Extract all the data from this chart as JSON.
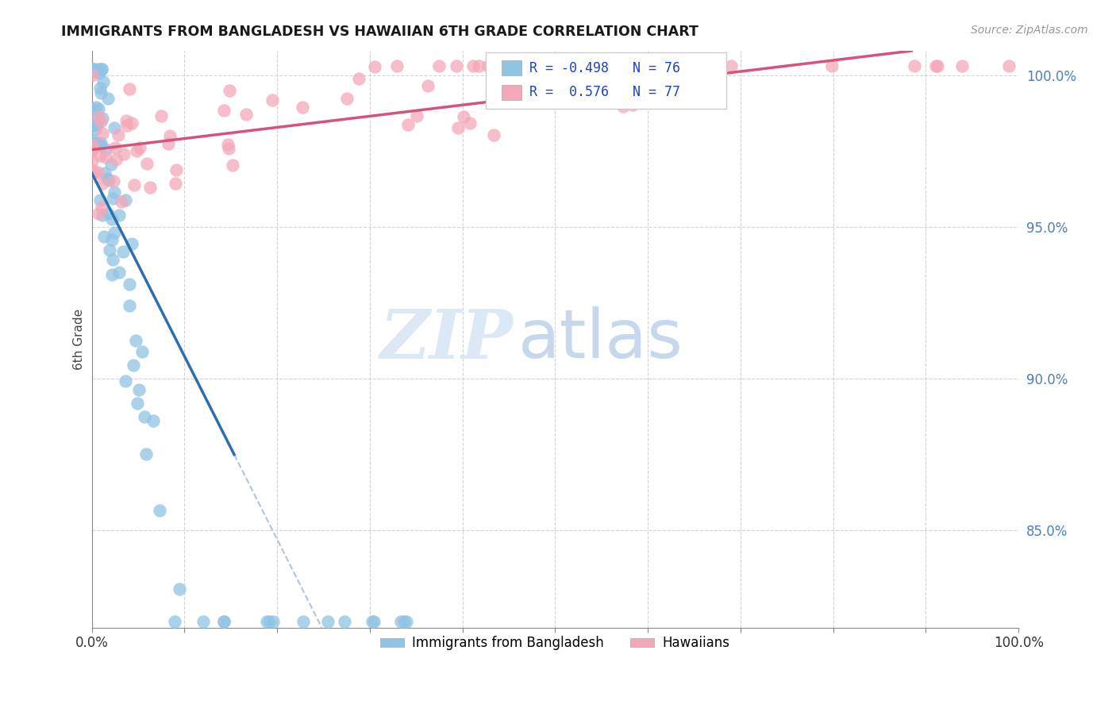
{
  "title": "IMMIGRANTS FROM BANGLADESH VS HAWAIIAN 6TH GRADE CORRELATION CHART",
  "source": "Source: ZipAtlas.com",
  "ylabel": "6th Grade",
  "xlim": [
    0.0,
    1.0
  ],
  "ylim": [
    0.818,
    1.008
  ],
  "yticks": [
    0.85,
    0.9,
    0.95,
    1.0
  ],
  "ytick_labels": [
    "85.0%",
    "90.0%",
    "95.0%",
    "100.0%"
  ],
  "xticks": [
    0.0,
    0.1,
    0.2,
    0.3,
    0.4,
    0.5,
    0.6,
    0.7,
    0.8,
    0.9,
    1.0
  ],
  "blue_R": -0.498,
  "blue_N": 76,
  "pink_R": 0.576,
  "pink_N": 77,
  "blue_color": "#90c4e4",
  "pink_color": "#f4a7b9",
  "blue_line_color": "#2c6fad",
  "pink_line_color": "#d4547a",
  "dash_color": "#b0c4de",
  "grid_color": "#c8c8c8",
  "title_color": "#1a1a1a",
  "source_color": "#999999",
  "ytick_color": "#4a7fc1",
  "legend_text_color": "#2244bb",
  "watermark_zip_color": "#dce8f5",
  "watermark_atlas_color": "#c8d8ec"
}
